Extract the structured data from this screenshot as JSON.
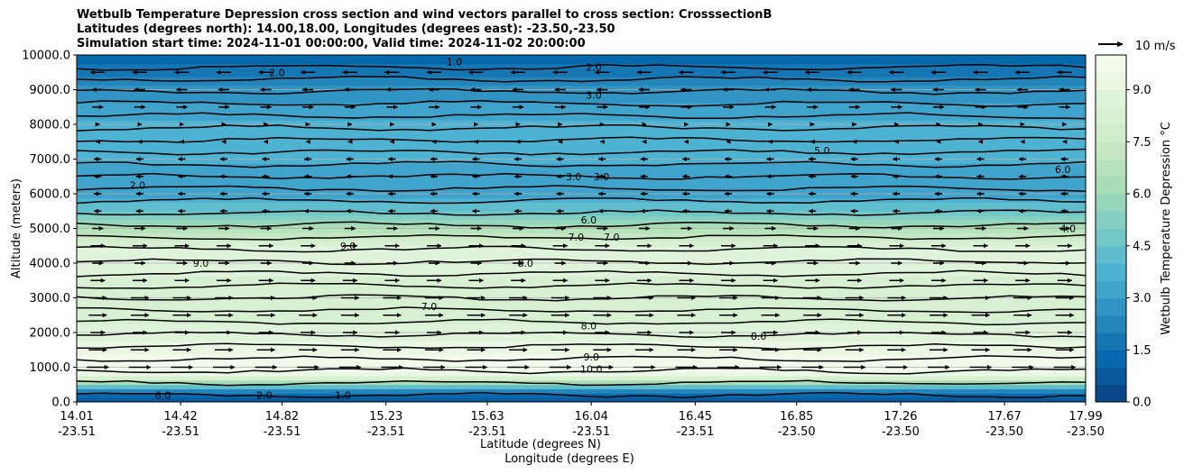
{
  "title": {
    "line1": "Wetbulb Temperature Depression cross section and wind vectors parallel to cross section: CrosssectionB",
    "line2": "Latitudes (degrees north): 14.00,18.00, Longitudes (degrees east): -23.50,-23.50",
    "line3": "Simulation start time: 2024-11-01 00:00:00, Valid time: 2024-11-02 20:00:00"
  },
  "chart_data": {
    "type": "heatmap",
    "title": "Wetbulb Temperature Depression cross section and wind vectors parallel to cross section: CrosssectionB",
    "ylabel": "Altitude (meters)",
    "xlabel_lat": "Latitude (degrees N)",
    "xlabel_lon": "Longitude (degrees E)",
    "xlim": [
      14.01,
      17.99
    ],
    "ylim": [
      0,
      10000
    ],
    "x_ticks": [
      {
        "lat": "14.01",
        "lon": "-23.51",
        "v": 14.01
      },
      {
        "lat": "14.42",
        "lon": "-23.51",
        "v": 14.42
      },
      {
        "lat": "14.82",
        "lon": "-23.51",
        "v": 14.82
      },
      {
        "lat": "15.23",
        "lon": "-23.51",
        "v": 15.23
      },
      {
        "lat": "15.63",
        "lon": "-23.51",
        "v": 15.63
      },
      {
        "lat": "16.04",
        "lon": "-23.51",
        "v": 16.04
      },
      {
        "lat": "16.45",
        "lon": "-23.51",
        "v": 16.45
      },
      {
        "lat": "16.85",
        "lon": "-23.50",
        "v": 16.85
      },
      {
        "lat": "17.26",
        "lon": "-23.50",
        "v": 17.26
      },
      {
        "lat": "17.67",
        "lon": "-23.50",
        "v": 17.67
      },
      {
        "lat": "17.99",
        "lon": "-23.50",
        "v": 17.99
      }
    ],
    "y_ticks": [
      "0.0",
      "1000.0",
      "2000.0",
      "3000.0",
      "4000.0",
      "5000.0",
      "6000.0",
      "7000.0",
      "8000.0",
      "9000.0",
      "10000.0"
    ],
    "y_tick_values": [
      0,
      1000,
      2000,
      3000,
      4000,
      5000,
      6000,
      7000,
      8000,
      9000,
      10000
    ],
    "grid": true,
    "colorbar": {
      "label": "Wetbulb Temperature Depression °C",
      "min": 0,
      "max": 10,
      "ticks": [
        "0.0",
        "1.5",
        "3.0",
        "4.5",
        "6.0",
        "7.5",
        "9.0"
      ],
      "tick_values": [
        0,
        1.5,
        3,
        4.5,
        6,
        7.5,
        9
      ],
      "colormap": "GnBu_r"
    },
    "quiver_key": {
      "label": "10 m/s",
      "speed": 10
    },
    "levels": [
      {
        "alt": 0,
        "value": 0.5
      },
      {
        "alt": 250,
        "value": 1.5
      },
      {
        "alt": 500,
        "value": 5.0
      },
      {
        "alt": 750,
        "value": 9.0
      },
      {
        "alt": 1000,
        "value": 9.8
      },
      {
        "alt": 1250,
        "value": 9.7
      },
      {
        "alt": 1500,
        "value": 9.3
      },
      {
        "alt": 2000,
        "value": 8.7
      },
      {
        "alt": 2500,
        "value": 8.3
      },
      {
        "alt": 3000,
        "value": 8.1
      },
      {
        "alt": 3500,
        "value": 8.4
      },
      {
        "alt": 4000,
        "value": 9.0
      },
      {
        "alt": 4500,
        "value": 8.6
      },
      {
        "alt": 5000,
        "value": 6.6
      },
      {
        "alt": 5500,
        "value": 4.5
      },
      {
        "alt": 6000,
        "value": 3.2
      },
      {
        "alt": 6500,
        "value": 3.0
      },
      {
        "alt": 7000,
        "value": 3.6
      },
      {
        "alt": 7500,
        "value": 3.8
      },
      {
        "alt": 8000,
        "value": 3.6
      },
      {
        "alt": 8500,
        "value": 3.2
      },
      {
        "alt": 9000,
        "value": 2.6
      },
      {
        "alt": 9500,
        "value": 1.8
      },
      {
        "alt": 10000,
        "value": 1.0
      }
    ],
    "wind_levels": [
      {
        "alt": 9500,
        "u": -4
      },
      {
        "alt": 9000,
        "u": -3
      },
      {
        "alt": 8500,
        "u": 3
      },
      {
        "alt": 8000,
        "u": 1
      },
      {
        "alt": 7500,
        "u": -1
      },
      {
        "alt": 7000,
        "u": -2
      },
      {
        "alt": 6500,
        "u": -2
      },
      {
        "alt": 6000,
        "u": -2
      },
      {
        "alt": 5500,
        "u": -2
      },
      {
        "alt": 5000,
        "u": 3
      },
      {
        "alt": 4500,
        "u": 4
      },
      {
        "alt": 4000,
        "u": 3
      },
      {
        "alt": 3500,
        "u": 4
      },
      {
        "alt": 3000,
        "u": 5
      },
      {
        "alt": 2500,
        "u": 5
      },
      {
        "alt": 2000,
        "u": 4
      },
      {
        "alt": 1500,
        "u": 5
      },
      {
        "alt": 1000,
        "u": 6
      }
    ],
    "contour_labels": [
      {
        "text": "2.0",
        "x": 16.05,
        "alt": 9650
      },
      {
        "text": "3.0",
        "x": 16.05,
        "alt": 8850
      },
      {
        "text": "2.0",
        "x": 14.8,
        "alt": 9500
      },
      {
        "text": "1.0",
        "x": 15.5,
        "alt": 9800
      },
      {
        "text": "3.0",
        "x": 15.97,
        "alt": 6500
      },
      {
        "text": "3.0",
        "x": 16.08,
        "alt": 6500
      },
      {
        "text": "5.0",
        "x": 16.95,
        "alt": 7250
      },
      {
        "text": "6.0",
        "x": 17.9,
        "alt": 6700
      },
      {
        "text": "2.0",
        "x": 14.25,
        "alt": 6250
      },
      {
        "text": "6.0",
        "x": 16.03,
        "alt": 5250
      },
      {
        "text": "7.0",
        "x": 15.98,
        "alt": 4750
      },
      {
        "text": "7.0",
        "x": 16.12,
        "alt": 4750
      },
      {
        "text": "4.0",
        "x": 17.92,
        "alt": 5000
      },
      {
        "text": "9.0",
        "x": 14.5,
        "alt": 4000
      },
      {
        "text": "9.0",
        "x": 15.08,
        "alt": 4500
      },
      {
        "text": "8.0",
        "x": 15.78,
        "alt": 4000
      },
      {
        "text": "7.0",
        "x": 15.4,
        "alt": 2750
      },
      {
        "text": "8.0",
        "x": 16.03,
        "alt": 2200
      },
      {
        "text": "8.0",
        "x": 16.7,
        "alt": 1900
      },
      {
        "text": "9.0",
        "x": 16.04,
        "alt": 1300
      },
      {
        "text": "10.0",
        "x": 16.04,
        "alt": 950
      },
      {
        "text": "2.0",
        "x": 14.75,
        "alt": 200
      },
      {
        "text": "6.0",
        "x": 14.35,
        "alt": 200
      },
      {
        "text": "1.0",
        "x": 15.06,
        "alt": 200
      }
    ]
  }
}
